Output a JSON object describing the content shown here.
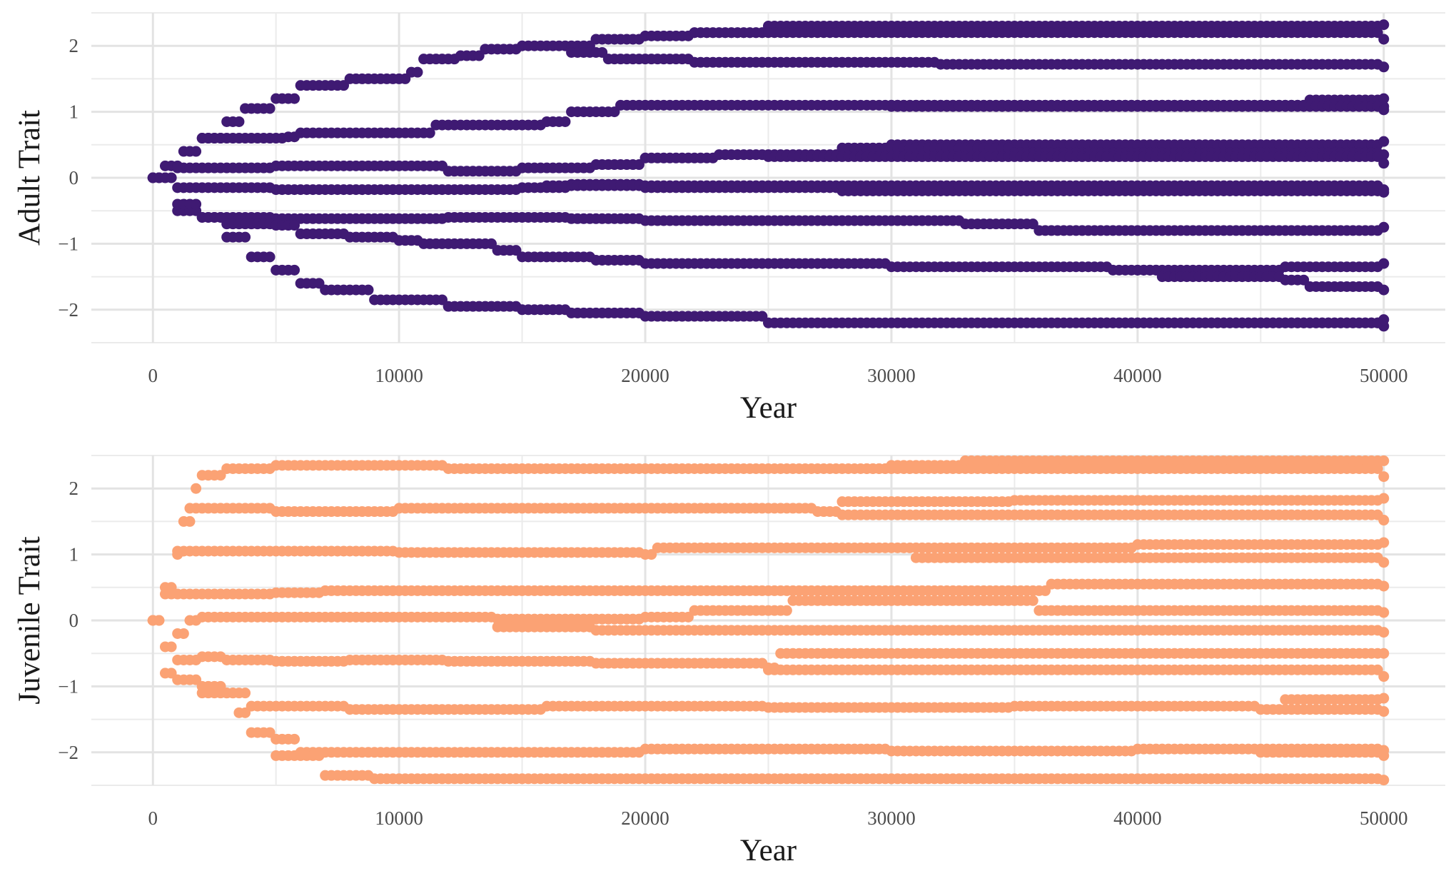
{
  "chart_data": [
    {
      "type": "scatter",
      "title": "",
      "xlabel": "Year",
      "ylabel": "Adult Trait",
      "color": "#3f1a73",
      "xlim": [
        -2500,
        52500
      ],
      "ylim": [
        -2.5,
        2.5
      ],
      "x_ticks": [
        0,
        10000,
        20000,
        30000,
        40000,
        50000
      ],
      "x_tick_labels": [
        "0",
        "10000",
        "20000",
        "30000",
        "40000",
        "50000"
      ],
      "y_ticks": [
        -2,
        -1,
        0,
        1,
        2
      ],
      "y_tick_labels": [
        "−2",
        "−1",
        "0",
        "1",
        "2"
      ],
      "grid": true,
      "lineages": [
        {
          "start": 0,
          "end": 50000,
          "points": [
            [
              0,
              0
            ],
            [
              500,
              0.18
            ],
            [
              1200,
              0.4
            ],
            [
              2000,
              0.6
            ],
            [
              2800,
              0.85
            ],
            [
              3600,
              1.05
            ],
            [
              5000,
              1.2
            ],
            [
              6000,
              1.4
            ],
            [
              8000,
              1.5
            ],
            [
              10500,
              1.6
            ],
            [
              11000,
              1.8
            ],
            [
              12500,
              1.85
            ],
            [
              13500,
              1.95
            ],
            [
              15000,
              2.0
            ],
            [
              18000,
              2.1
            ],
            [
              20000,
              2.15
            ],
            [
              22000,
              2.2
            ],
            [
              25000,
              2.3
            ],
            [
              50000,
              2.32
            ]
          ]
        },
        {
          "start": 22000,
          "end": 50000,
          "points": [
            [
              22000,
              2.2
            ],
            [
              50000,
              2.1
            ]
          ]
        },
        {
          "start": 17000,
          "end": 50000,
          "points": [
            [
              17000,
              1.9
            ],
            [
              18500,
              1.8
            ],
            [
              22000,
              1.75
            ],
            [
              32000,
              1.72
            ],
            [
              50000,
              1.68
            ]
          ]
        },
        {
          "start": 2000,
          "end": 50000,
          "points": [
            [
              2000,
              0.6
            ],
            [
              5500,
              0.62
            ],
            [
              6000,
              0.68
            ],
            [
              10000,
              0.68
            ],
            [
              11500,
              0.8
            ],
            [
              16000,
              0.85
            ],
            [
              17000,
              1.0
            ],
            [
              19000,
              1.1
            ],
            [
              50000,
              1.08
            ]
          ]
        },
        {
          "start": 30000,
          "end": 50000,
          "points": [
            [
              30000,
              1.1
            ],
            [
              46000,
              1.1
            ],
            [
              47000,
              1.18
            ],
            [
              50000,
              1.2
            ]
          ]
        },
        {
          "start": 30000,
          "end": 50000,
          "points": [
            [
              30000,
              1.08
            ],
            [
              50000,
              1.03
            ]
          ]
        },
        {
          "start": 0,
          "end": 50000,
          "points": [
            [
              0,
              0
            ],
            [
              800,
              0.15
            ],
            [
              5000,
              0.18
            ],
            [
              12000,
              0.1
            ],
            [
              15000,
              0.15
            ],
            [
              18000,
              0.2
            ],
            [
              20000,
              0.3
            ],
            [
              23000,
              0.35
            ],
            [
              28000,
              0.45
            ],
            [
              30000,
              0.5
            ],
            [
              50000,
              0.55
            ]
          ]
        },
        {
          "start": 28000,
          "end": 50000,
          "points": [
            [
              28000,
              0.45
            ],
            [
              35000,
              0.38
            ],
            [
              50000,
              0.35
            ]
          ]
        },
        {
          "start": 25000,
          "end": 50000,
          "points": [
            [
              25000,
              0.32
            ],
            [
              50000,
              0.22
            ]
          ]
        },
        {
          "start": 1000,
          "end": 50000,
          "points": [
            [
              1000,
              -0.15
            ],
            [
              5000,
              -0.18
            ],
            [
              13000,
              -0.18
            ],
            [
              15000,
              -0.15
            ],
            [
              17000,
              -0.1
            ],
            [
              20000,
              -0.15
            ],
            [
              28000,
              -0.2
            ],
            [
              50000,
              -0.22
            ]
          ]
        },
        {
          "start": 16000,
          "end": 50000,
          "points": [
            [
              16000,
              -0.12
            ],
            [
              50000,
              -0.18
            ]
          ]
        },
        {
          "start": 1000,
          "end": 50000,
          "points": [
            [
              0,
              0
            ],
            [
              1000,
              -0.5
            ],
            [
              2000,
              -0.6
            ],
            [
              5000,
              -0.62
            ],
            [
              10000,
              -0.62
            ],
            [
              12000,
              -0.6
            ],
            [
              17000,
              -0.62
            ],
            [
              20000,
              -0.65
            ],
            [
              33000,
              -0.7
            ],
            [
              36000,
              -0.8
            ],
            [
              50000,
              -0.75
            ]
          ]
        },
        {
          "start": 3000,
          "end": 50000,
          "points": [
            [
              3000,
              -0.7
            ],
            [
              5000,
              -0.72
            ],
            [
              6000,
              -0.85
            ],
            [
              8000,
              -0.9
            ],
            [
              10000,
              -0.95
            ],
            [
              11000,
              -1.0
            ],
            [
              14000,
              -1.1
            ],
            [
              15000,
              -1.2
            ],
            [
              18000,
              -1.25
            ],
            [
              20000,
              -1.3
            ],
            [
              30000,
              -1.35
            ],
            [
              39000,
              -1.4
            ],
            [
              42000,
              -1.4
            ],
            [
              46000,
              -1.35
            ],
            [
              50000,
              -1.3
            ]
          ]
        },
        {
          "start": 40000,
          "end": 50000,
          "points": [
            [
              40000,
              -1.4
            ],
            [
              41000,
              -1.5
            ],
            [
              46000,
              -1.55
            ],
            [
              47000,
              -1.65
            ],
            [
              50000,
              -1.7
            ]
          ]
        },
        {
          "start": 0,
          "end": 50000,
          "points": [
            [
              0,
              0
            ],
            [
              1000,
              -0.4
            ],
            [
              2000,
              -0.6
            ],
            [
              3000,
              -0.9
            ],
            [
              4000,
              -1.2
            ],
            [
              5000,
              -1.4
            ],
            [
              6000,
              -1.6
            ],
            [
              7000,
              -1.7
            ],
            [
              9000,
              -1.85
            ],
            [
              12000,
              -1.95
            ],
            [
              15000,
              -2.0
            ],
            [
              17000,
              -2.05
            ],
            [
              20000,
              -2.1
            ],
            [
              25000,
              -2.2
            ],
            [
              50000,
              -2.25
            ]
          ]
        },
        {
          "start": 38000,
          "end": 50000,
          "points": [
            [
              38000,
              -2.2
            ],
            [
              50000,
              -2.15
            ]
          ]
        }
      ]
    },
    {
      "type": "scatter",
      "title": "",
      "xlabel": "Year",
      "ylabel": "Juvenile Trait",
      "color": "#fba274",
      "xlim": [
        -2500,
        52500
      ],
      "ylim": [
        -2.5,
        2.5
      ],
      "x_ticks": [
        0,
        10000,
        20000,
        30000,
        40000,
        50000
      ],
      "x_tick_labels": [
        "0",
        "10000",
        "20000",
        "30000",
        "40000",
        "50000"
      ],
      "y_ticks": [
        -2,
        -1,
        0,
        1,
        2
      ],
      "y_tick_labels": [
        "−2",
        "−1",
        "0",
        "1",
        "2"
      ],
      "grid": true,
      "lineages": [
        {
          "start": 0,
          "end": 50000,
          "points": [
            [
              0,
              0
            ],
            [
              400,
              0.5
            ],
            [
              800,
              1.0
            ],
            [
              1200,
              1.5
            ],
            [
              1600,
              2.0
            ],
            [
              2000,
              2.2
            ],
            [
              3000,
              2.3
            ],
            [
              5000,
              2.35
            ],
            [
              12000,
              2.3
            ],
            [
              20000,
              2.3
            ],
            [
              30000,
              2.35
            ],
            [
              33000,
              2.42
            ],
            [
              50000,
              2.42
            ]
          ]
        },
        {
          "start": 29000,
          "end": 50000,
          "points": [
            [
              29000,
              2.3
            ],
            [
              50000,
              2.18
            ]
          ]
        },
        {
          "start": 1500,
          "end": 50000,
          "points": [
            [
              1500,
              1.7
            ],
            [
              5000,
              1.65
            ],
            [
              10000,
              1.7
            ],
            [
              20000,
              1.7
            ],
            [
              27000,
              1.65
            ],
            [
              28000,
              1.8
            ],
            [
              35000,
              1.82
            ],
            [
              50000,
              1.85
            ]
          ]
        },
        {
          "start": 28000,
          "end": 50000,
          "points": [
            [
              28000,
              1.6
            ],
            [
              50000,
              1.52
            ]
          ]
        },
        {
          "start": 1000,
          "end": 50000,
          "points": [
            [
              1000,
              1.05
            ],
            [
              10000,
              1.03
            ],
            [
              20000,
              1.0
            ],
            [
              20500,
              1.1
            ],
            [
              30000,
              1.1
            ],
            [
              39000,
              1.1
            ],
            [
              40000,
              1.15
            ],
            [
              50000,
              1.18
            ]
          ]
        },
        {
          "start": 31000,
          "end": 50000,
          "points": [
            [
              31000,
              0.95
            ],
            [
              50000,
              0.88
            ]
          ]
        },
        {
          "start": 500,
          "end": 50000,
          "points": [
            [
              500,
              0.4
            ],
            [
              5000,
              0.42
            ],
            [
              7000,
              0.45
            ],
            [
              30000,
              0.45
            ],
            [
              36000,
              0.45
            ],
            [
              36500,
              0.55
            ],
            [
              50000,
              0.52
            ]
          ]
        },
        {
          "start": 1000,
          "end": 50000,
          "points": [
            [
              1000,
              -0.2
            ],
            [
              1500,
              0.0
            ],
            [
              2000,
              0.05
            ],
            [
              10000,
              0.05
            ],
            [
              14000,
              0.02
            ],
            [
              20000,
              0.05
            ],
            [
              22000,
              0.15
            ],
            [
              26000,
              0.3
            ],
            [
              32000,
              0.3
            ],
            [
              36000,
              0.15
            ],
            [
              50000,
              0.12
            ]
          ]
        },
        {
          "start": 14000,
          "end": 50000,
          "points": [
            [
              14000,
              -0.1
            ],
            [
              18000,
              -0.15
            ],
            [
              50000,
              -0.18
            ]
          ]
        },
        {
          "start": 0,
          "end": 50000,
          "points": [
            [
              0,
              0
            ],
            [
              500,
              -0.4
            ],
            [
              1000,
              -0.6
            ],
            [
              2000,
              -0.55
            ],
            [
              3000,
              -0.6
            ],
            [
              5000,
              -0.62
            ],
            [
              8000,
              -0.6
            ],
            [
              12000,
              -0.62
            ],
            [
              18000,
              -0.65
            ],
            [
              25000,
              -0.72
            ],
            [
              25500,
              -0.5
            ],
            [
              30000,
              -0.5
            ],
            [
              50000,
              -0.5
            ]
          ]
        },
        {
          "start": 25000,
          "end": 50000,
          "points": [
            [
              25000,
              -0.75
            ],
            [
              50000,
              -0.85
            ]
          ]
        },
        {
          "start": 0,
          "end": 50000,
          "points": [
            [
              0,
              0
            ],
            [
              500,
              -0.8
            ],
            [
              1000,
              -0.9
            ],
            [
              2000,
              -1.0
            ],
            [
              3000,
              -1.1
            ],
            [
              4000,
              -1.3
            ],
            [
              8000,
              -1.35
            ],
            [
              16000,
              -1.3
            ],
            [
              25000,
              -1.32
            ],
            [
              35000,
              -1.3
            ],
            [
              45000,
              -1.35
            ],
            [
              50000,
              -1.38
            ]
          ]
        },
        {
          "start": 46000,
          "end": 50000,
          "points": [
            [
              46000,
              -1.2
            ],
            [
              50000,
              -1.18
            ]
          ]
        },
        {
          "start": 2000,
          "end": 50000,
          "points": [
            [
              2000,
              -1.1
            ],
            [
              3500,
              -1.4
            ],
            [
              4000,
              -1.7
            ],
            [
              5000,
              -1.8
            ],
            [
              6000,
              -2.0
            ],
            [
              10000,
              -2.0
            ],
            [
              20000,
              -1.95
            ],
            [
              30000,
              -1.98
            ],
            [
              40000,
              -1.95
            ],
            [
              50000,
              -1.97
            ]
          ]
        },
        {
          "start": 45000,
          "end": 50000,
          "points": [
            [
              45000,
              -2.0
            ],
            [
              50000,
              -2.05
            ]
          ]
        },
        {
          "start": 5000,
          "end": 50000,
          "points": [
            [
              5000,
              -2.05
            ],
            [
              7000,
              -2.35
            ],
            [
              9000,
              -2.4
            ],
            [
              50000,
              -2.42
            ]
          ]
        }
      ]
    }
  ]
}
